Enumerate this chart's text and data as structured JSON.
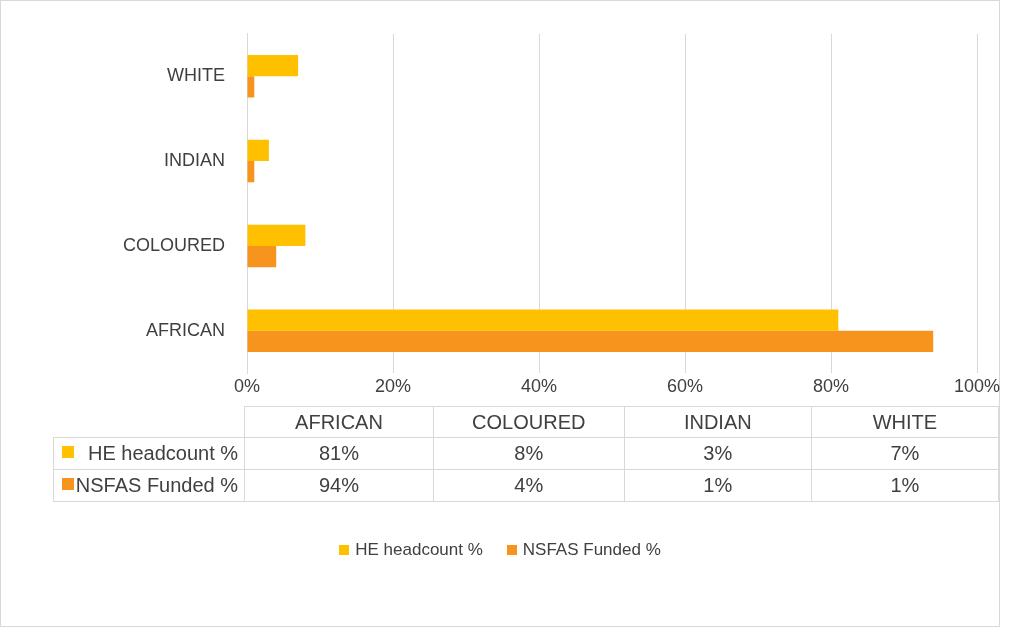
{
  "chart_data": {
    "type": "bar",
    "orientation": "horizontal",
    "categories": [
      "WHITE",
      "INDIAN",
      "COLOURED",
      "AFRICAN"
    ],
    "series": [
      {
        "name": "HE headcount %",
        "color": "#ffc000",
        "values": [
          7,
          3,
          8,
          81
        ]
      },
      {
        "name": "NSFAS Funded %",
        "color": "#f7941d",
        "values": [
          1,
          1,
          4,
          94
        ]
      }
    ],
    "annotations": [
      "81%",
      "8%",
      "3%",
      "7%",
      "94%",
      "4%",
      "1%",
      "1%"
    ],
    "xlim": [
      0,
      100
    ],
    "xticks": [
      {
        "value": 0,
        "label": "0%"
      },
      {
        "value": 20,
        "label": "20%"
      },
      {
        "value": 40,
        "label": "40%"
      },
      {
        "value": 60,
        "label": "60%"
      },
      {
        "value": 80,
        "label": "80%"
      },
      {
        "value": 100,
        "label": "100%"
      }
    ],
    "grid": "x",
    "legend": "bottom"
  }
}
